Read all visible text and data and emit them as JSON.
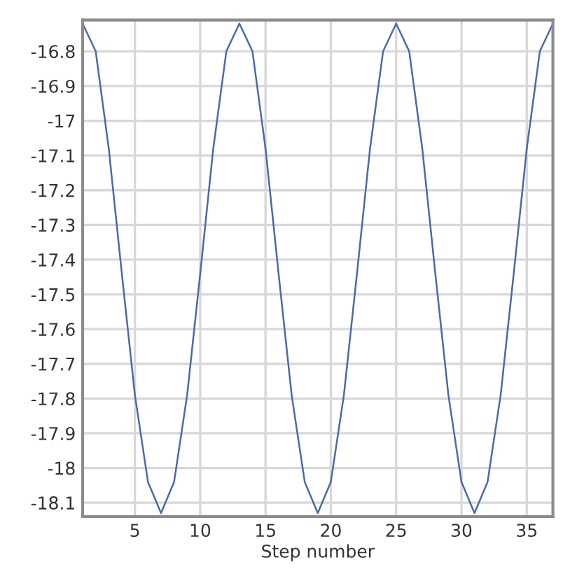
{
  "chart_data": {
    "type": "line",
    "xlabel": "Step number",
    "x": [
      1,
      2,
      3,
      4,
      5,
      6,
      7,
      8,
      9,
      10,
      11,
      12,
      13,
      14,
      15,
      16,
      17,
      18,
      19,
      20,
      21,
      22,
      23,
      24,
      25,
      26,
      27,
      28,
      29,
      30,
      31,
      32,
      33,
      34,
      35,
      36,
      37
    ],
    "series": [
      {
        "color": "#4a6aa8",
        "values": [
          -16.72,
          -16.8,
          -17.08,
          -17.44,
          -17.79,
          -18.04,
          -18.13,
          -18.04,
          -17.79,
          -17.44,
          -17.08,
          -16.8,
          -16.72,
          -16.8,
          -17.08,
          -17.44,
          -17.79,
          -18.04,
          -18.13,
          -18.04,
          -17.79,
          -17.44,
          -17.08,
          -16.8,
          -16.72,
          -16.8,
          -17.08,
          -17.44,
          -17.79,
          -18.04,
          -18.13,
          -18.04,
          -17.79,
          -17.44,
          -17.08,
          -16.8,
          -16.72
        ]
      }
    ],
    "xlim": [
      1,
      37
    ],
    "xticks": [
      5,
      10,
      15,
      20,
      25,
      30,
      35
    ],
    "ylim": [
      -18.14,
      -16.71
    ],
    "yticks": [
      -18.1,
      -18,
      -17.9,
      -17.8,
      -17.7,
      -17.6,
      -17.5,
      -17.4,
      -17.3,
      -17.2,
      -17.1,
      -17,
      -16.9,
      -16.8
    ],
    "grid": true,
    "legend": false,
    "marker": "none",
    "line_style": "solid"
  }
}
